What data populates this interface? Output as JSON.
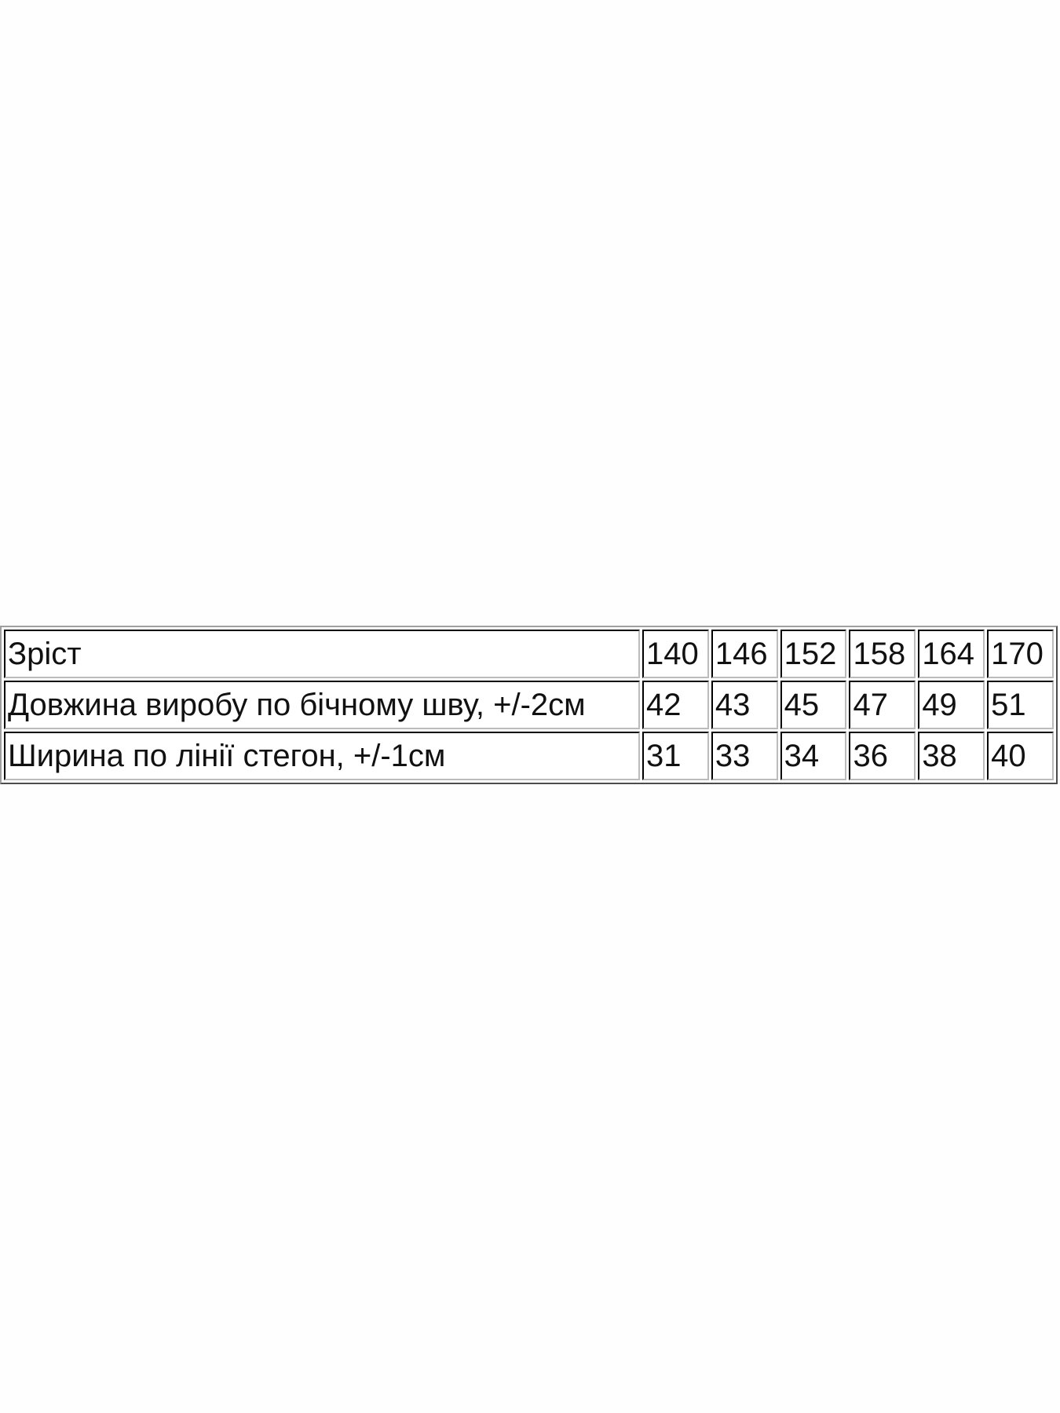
{
  "table": {
    "rows": [
      {
        "label": "Зріст",
        "values": [
          "140",
          "146",
          "152",
          "158",
          "164",
          "170"
        ]
      },
      {
        "label": "Довжина виробу по бічному шву, +/-2см",
        "values": [
          "42",
          "43",
          "45",
          "47",
          "49",
          "51"
        ]
      },
      {
        "label": "Ширина по лінії стегон, +/-1см",
        "values": [
          "31",
          "33",
          "34",
          "36",
          "38",
          "40"
        ]
      }
    ]
  }
}
